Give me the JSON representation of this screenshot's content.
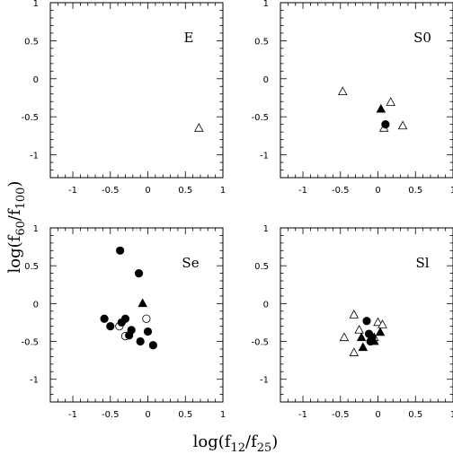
{
  "chart_data": {
    "type": "scatter",
    "xlabel": {
      "main": "log(f",
      "sub1": "12",
      "mid": "/f",
      "sub2": "25",
      "end": ")"
    },
    "ylabel": {
      "main": "log(f",
      "sub1": "60",
      "mid": "/f",
      "sub2": "100",
      "end": ")"
    },
    "xlim": [
      -1.3,
      1.0
    ],
    "ylim": [
      -1.3,
      1.0
    ],
    "xticks": [
      -1,
      -0.5,
      0,
      0.5,
      1
    ],
    "yticks": [
      -1,
      -0.5,
      0,
      0.5,
      1
    ],
    "panels": [
      {
        "label": "E",
        "open_triangles": [
          [
            0.68,
            -0.65
          ]
        ],
        "filled_triangles": [],
        "open_circles": [],
        "filled_circles": []
      },
      {
        "label": "S0",
        "open_triangles": [
          [
            -0.47,
            -0.17
          ],
          [
            0.17,
            -0.31
          ],
          [
            0.33,
            -0.62
          ],
          [
            0.08,
            -0.65
          ]
        ],
        "filled_triangles": [
          [
            0.04,
            -0.4
          ]
        ],
        "open_circles": [],
        "filled_circles": [
          [
            0.1,
            -0.6
          ]
        ]
      },
      {
        "label": "Se",
        "open_triangles": [],
        "filled_triangles": [
          [
            -0.07,
            0.0
          ]
        ],
        "open_circles": [
          [
            -0.02,
            -0.2
          ],
          [
            -0.38,
            -0.3
          ],
          [
            -0.3,
            -0.43
          ]
        ],
        "filled_circles": [
          [
            -0.37,
            0.7
          ],
          [
            -0.12,
            0.4
          ],
          [
            -0.58,
            -0.2
          ],
          [
            -0.5,
            -0.3
          ],
          [
            -0.35,
            -0.25
          ],
          [
            -0.3,
            -0.2
          ],
          [
            -0.22,
            -0.35
          ],
          [
            -0.25,
            -0.42
          ],
          [
            -0.1,
            -0.5
          ],
          [
            0.0,
            -0.37
          ],
          [
            0.07,
            -0.55
          ]
        ]
      },
      {
        "label": "Sl",
        "open_triangles": [
          [
            -0.32,
            -0.15
          ],
          [
            -0.45,
            -0.45
          ],
          [
            -0.32,
            -0.65
          ],
          [
            -0.25,
            -0.35
          ],
          [
            0.0,
            -0.25
          ],
          [
            0.06,
            -0.28
          ],
          [
            -0.05,
            -0.45
          ]
        ],
        "filled_triangles": [
          [
            -0.22,
            -0.45
          ],
          [
            -0.2,
            -0.58
          ],
          [
            0.03,
            -0.38
          ],
          [
            -0.05,
            -0.5
          ]
        ],
        "open_circles": [],
        "filled_circles": [
          [
            -0.15,
            -0.23
          ],
          [
            -0.12,
            -0.4
          ],
          [
            -0.08,
            -0.45
          ],
          [
            -0.1,
            -0.5
          ]
        ]
      }
    ]
  }
}
